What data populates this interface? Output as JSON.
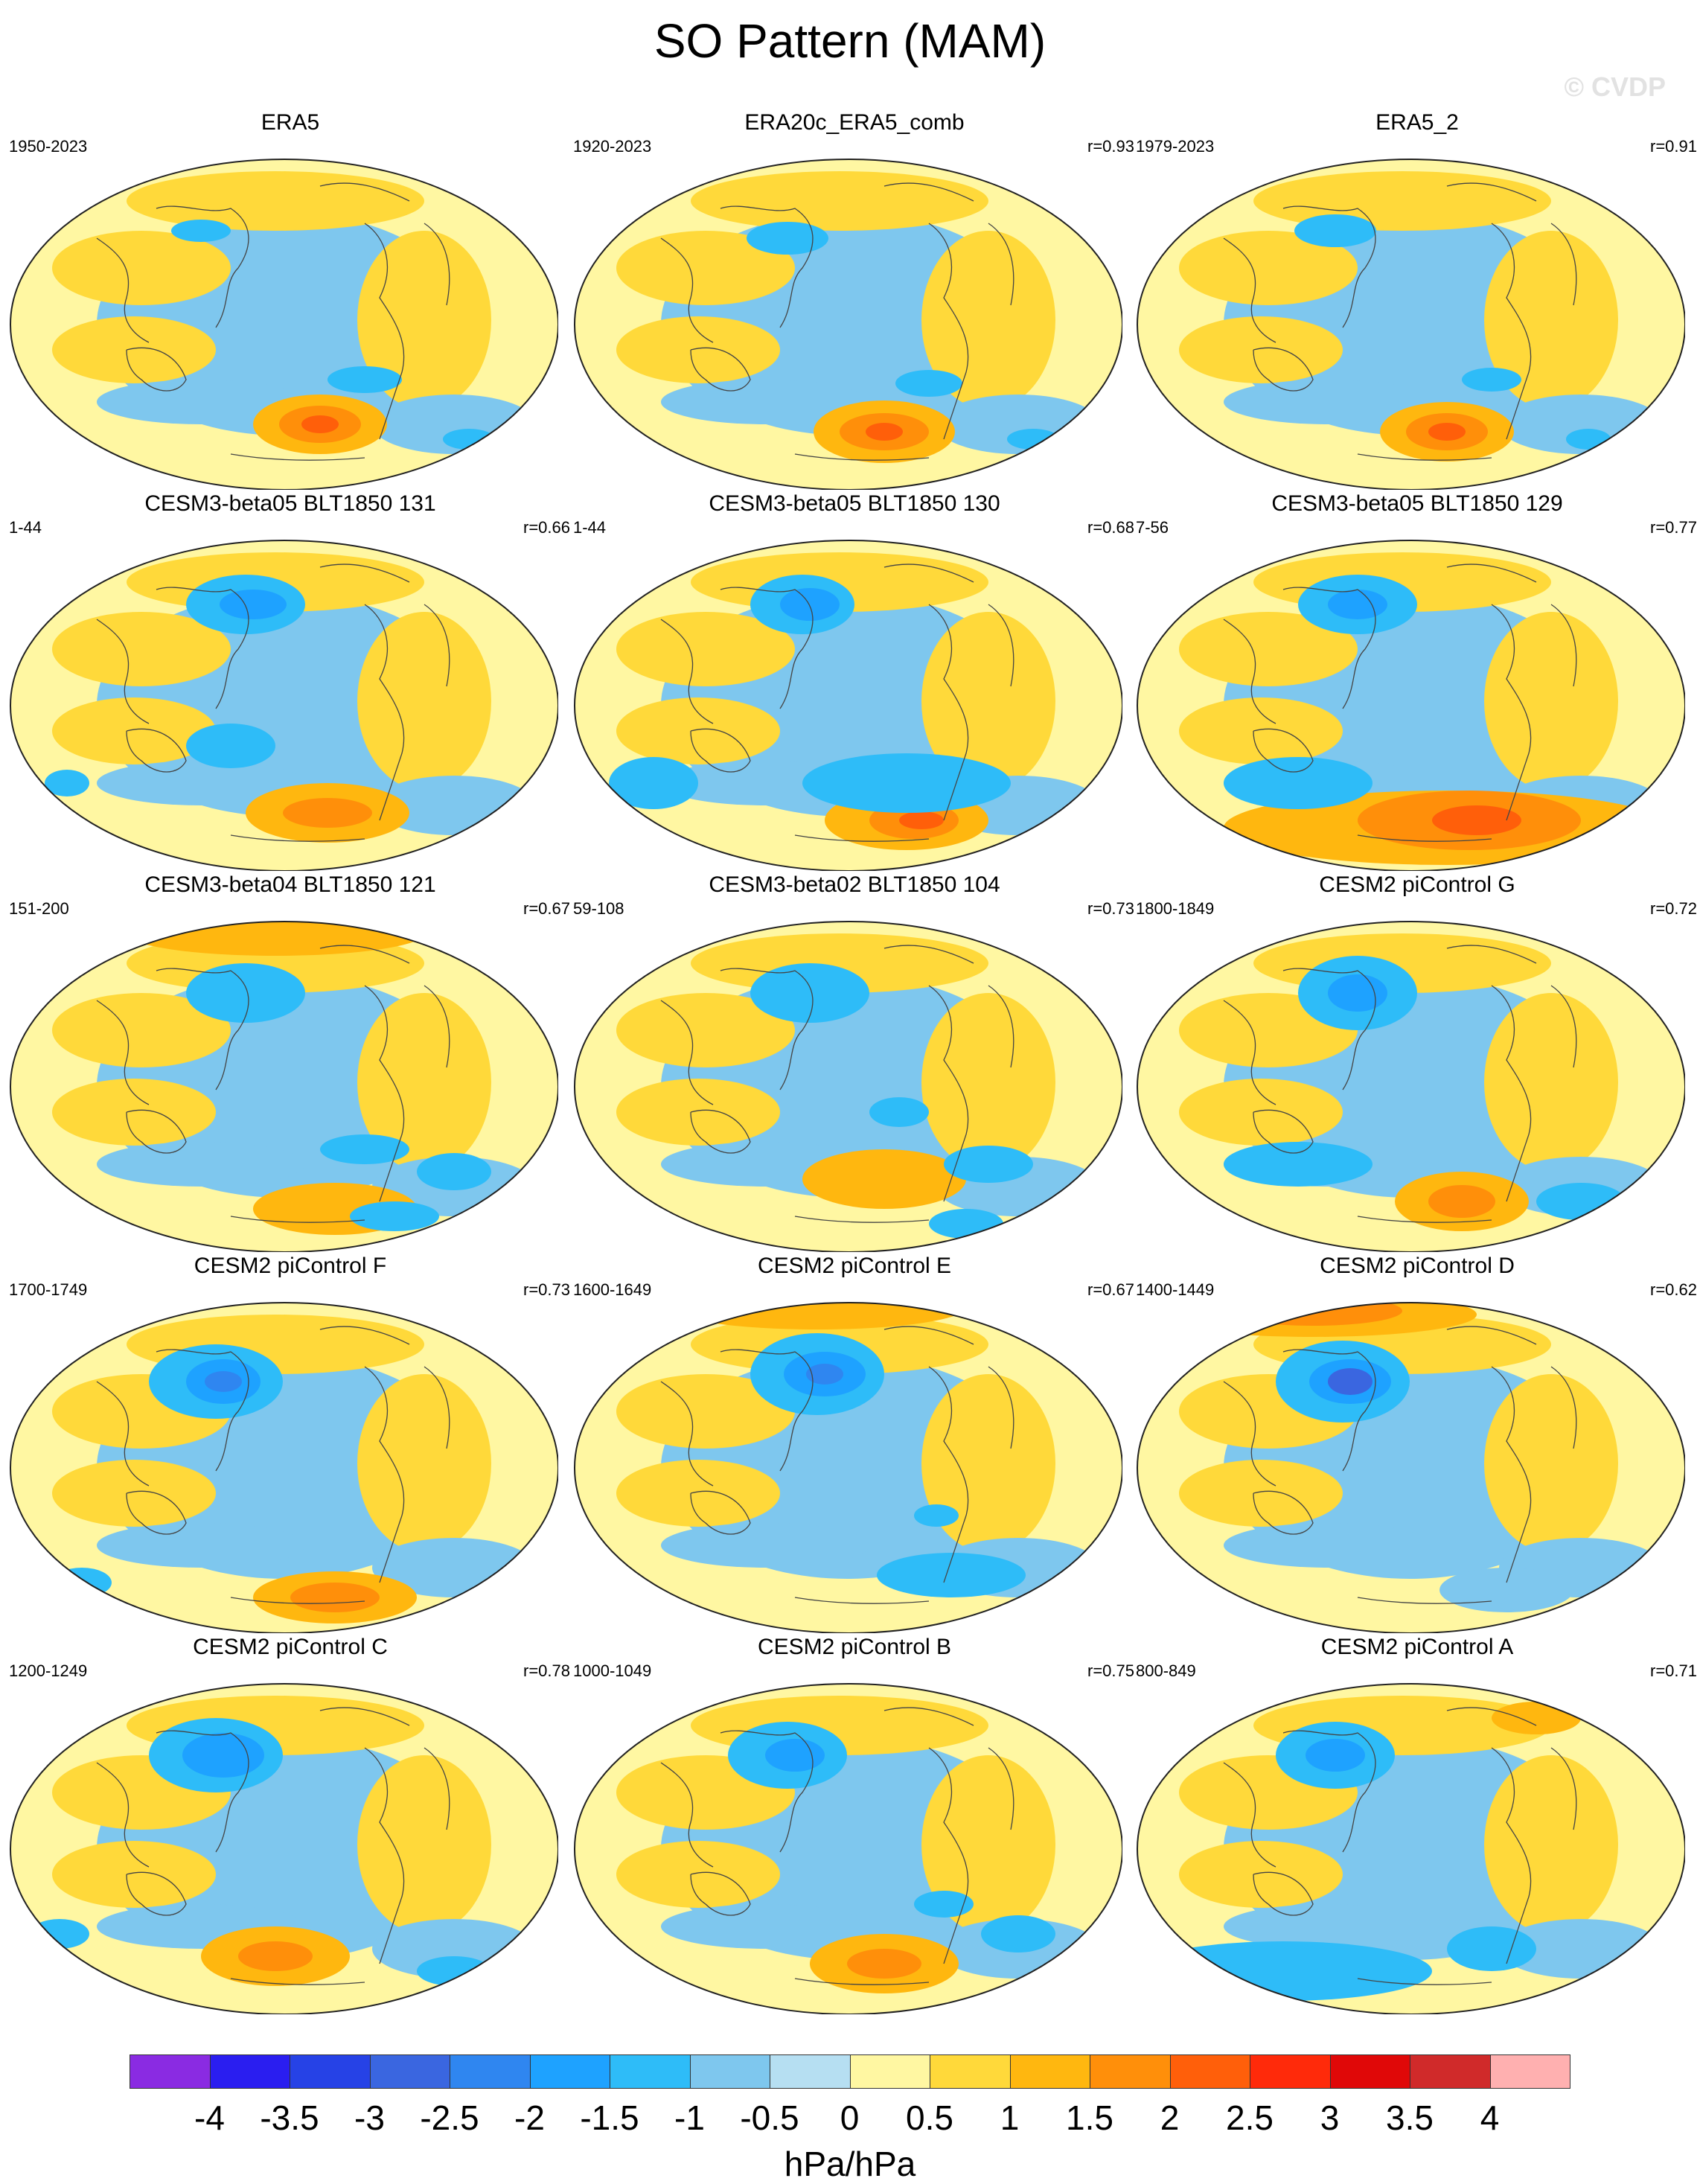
{
  "title": "SO Pattern (MAM)",
  "copyright": "© CVDP",
  "panels": [
    {
      "name": "ERA5",
      "period": "1950-2023",
      "r": ""
    },
    {
      "name": "ERA20c_ERA5_comb",
      "period": "1920-2023",
      "r": "r=0.93"
    },
    {
      "name": "ERA5_2",
      "period": "1979-2023",
      "r": "r=0.91"
    },
    {
      "name": "CESM3-beta05 BLT1850 131",
      "period": "1-44",
      "r": "r=0.66"
    },
    {
      "name": "CESM3-beta05 BLT1850 130",
      "period": "1-44",
      "r": "r=0.68"
    },
    {
      "name": "CESM3-beta05 BLT1850 129",
      "period": "7-56",
      "r": "r=0.77"
    },
    {
      "name": "CESM3-beta04 BLT1850 121",
      "period": "151-200",
      "r": "r=0.67"
    },
    {
      "name": "CESM3-beta02 BLT1850 104",
      "period": "59-108",
      "r": "r=0.73"
    },
    {
      "name": "CESM2 piControl G",
      "period": "1800-1849",
      "r": "r=0.72"
    },
    {
      "name": "CESM2 piControl F",
      "period": "1700-1749",
      "r": "r=0.73"
    },
    {
      "name": "CESM2 piControl E",
      "period": "1600-1649",
      "r": "r=0.67"
    },
    {
      "name": "CESM2 piControl D",
      "period": "1400-1449",
      "r": "r=0.62"
    },
    {
      "name": "CESM2 piControl C",
      "period": "1200-1249",
      "r": "r=0.78"
    },
    {
      "name": "CESM2 piControl B",
      "period": "1000-1049",
      "r": "r=0.75"
    },
    {
      "name": "CESM2 piControl A",
      "period": "800-849",
      "r": "r=0.71"
    }
  ],
  "colorbar": {
    "colors": [
      "#8a2be2",
      "#2a1ef0",
      "#2642e6",
      "#3a66e0",
      "#2f86f0",
      "#1ea2ff",
      "#2ebcf8",
      "#7ec7ee",
      "#b6dff2",
      "#fff7a2",
      "#ffd93a",
      "#ffb70f",
      "#ff8f0a",
      "#ff5f0a",
      "#ff2a0a",
      "#e00808",
      "#d02a2a",
      "#ffb0b0"
    ],
    "tick_labels": [
      "-4",
      "-3.5",
      "-3",
      "-2.5",
      "-2",
      "-1.5",
      "-1",
      "-0.5",
      "0",
      "0.5",
      "1",
      "1.5",
      "2",
      "2.5",
      "3",
      "3.5",
      "4"
    ],
    "units": "hPa/hPa"
  }
}
